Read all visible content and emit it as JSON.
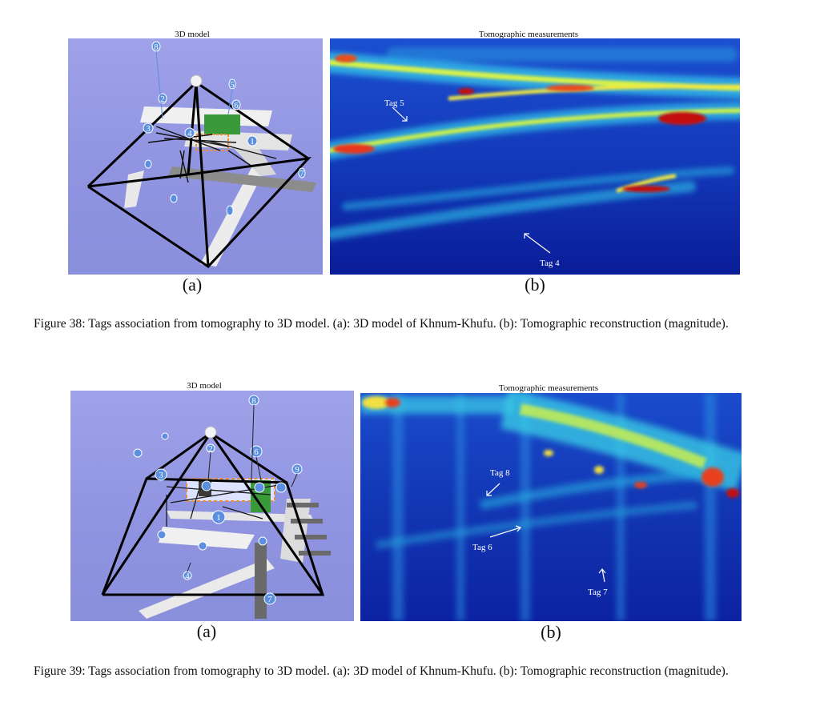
{
  "figure38": {
    "model_title": "3D model",
    "tomo_title": "Tomographic measurements",
    "label_a": "(a)",
    "label_b": "(b)",
    "caption": "Figure 38: Tags association from tomography to 3D model. (a): 3D model of Khnum-Khufu. (b): Tomographic reconstruction (magnitude).",
    "model_tags": [
      "8",
      "1",
      "2",
      "3",
      "4",
      "5",
      "6",
      "7"
    ],
    "tomo_tags": [
      "Tag 5",
      "Tag 4"
    ]
  },
  "figure39": {
    "model_title": "3D model",
    "tomo_title": "Tomographic measurements",
    "label_a": "(a)",
    "label_b": "(b)",
    "caption": "Figure 39: Tags association from tomography to 3D model. (a): 3D model of Khnum-Khufu. (b): Tomographic reconstruction (magnitude).",
    "model_tags": [
      "8",
      "2",
      "3",
      "6",
      "9",
      "1",
      "4",
      "7"
    ],
    "tomo_tags": [
      "Tag 8",
      "Tag 6",
      "Tag 7"
    ]
  },
  "colors": {
    "model_background": "#9a9de6",
    "heatmap_low": "#0b1e9e",
    "heatmap_mid": "#36c6e8",
    "heatmap_high": "#f2f23a",
    "heatmap_peak": "#c4101a"
  }
}
